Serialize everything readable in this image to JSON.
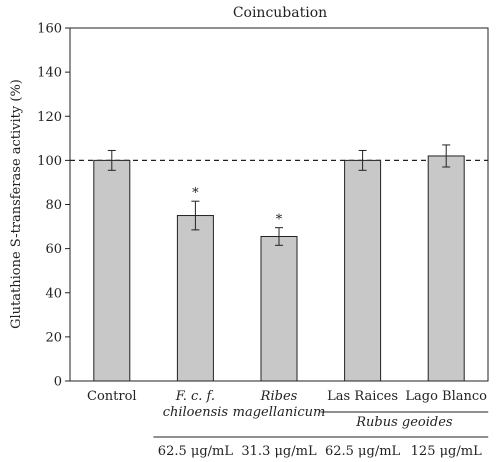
{
  "chart_data": {
    "type": "bar",
    "title": "Coincubation",
    "ylabel": "Glutathione S-transferase activity (%)",
    "xlabel": "",
    "ylim": [
      0,
      160
    ],
    "yticks": [
      0,
      20,
      40,
      60,
      80,
      100,
      120,
      140,
      160
    ],
    "reference_line": 100,
    "categories": [
      "Control",
      "F. c. f. chiloensis",
      "Ribes magellanicum",
      "Las Raices",
      "Lago Blanco"
    ],
    "values": [
      100,
      75,
      65.5,
      100,
      102
    ],
    "errors": [
      4.5,
      6.5,
      4,
      4.5,
      5
    ],
    "significance": [
      "",
      "*",
      "*",
      "",
      ""
    ],
    "label_lines": [
      [
        "Control",
        ""
      ],
      [
        "F. c. f.",
        "chiloensis"
      ],
      [
        "Ribes",
        "magellanicum"
      ],
      [
        "Las Raices",
        ""
      ],
      [
        "Lago Blanco",
        ""
      ]
    ],
    "group_label": "Rubus geoides",
    "concentrations": [
      "62.5 μg/mL",
      "31.3 μg/mL",
      "62.5 μg/mL",
      "125 μg/mL"
    ],
    "bar_color": "#c8c8c8"
  }
}
